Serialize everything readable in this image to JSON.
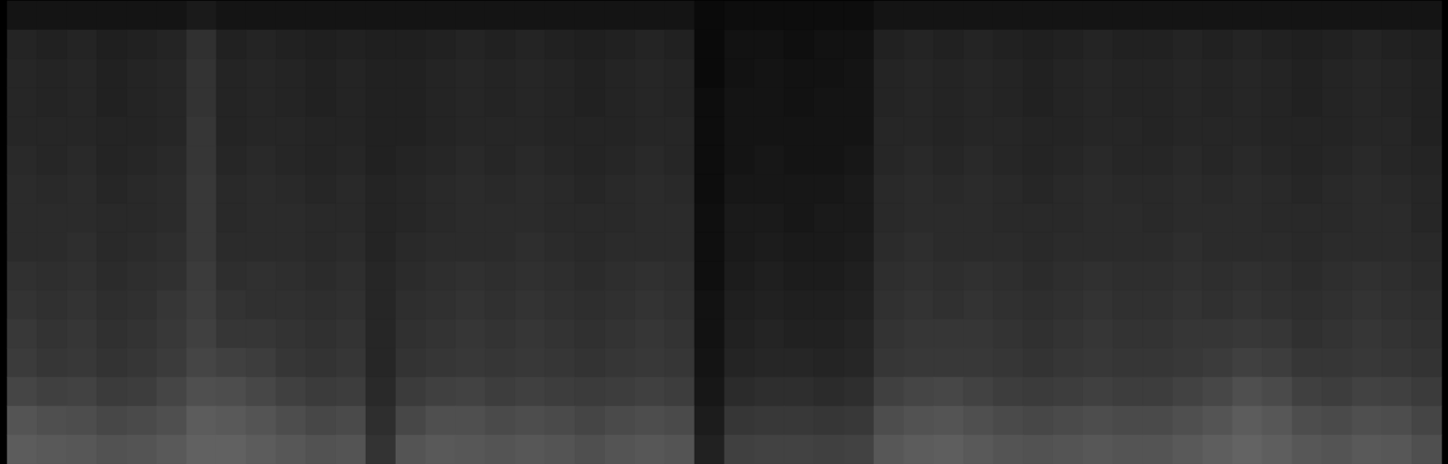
{
  "chart_data": {
    "type": "heatmap",
    "tick_labels": false,
    "zlim": [
      0,
      100
    ],
    "cells": [
      [
        8,
        8,
        8,
        8,
        8,
        8,
        10,
        8,
        8,
        8,
        8,
        8,
        8,
        8,
        8,
        8,
        8,
        8,
        8,
        8,
        8,
        8,
        8,
        4,
        5,
        5,
        5,
        5,
        5,
        8,
        8,
        8,
        8,
        8,
        8,
        8,
        8,
        8,
        8,
        8,
        8,
        8,
        8,
        8,
        8,
        8,
        8,
        8
      ],
      [
        14,
        13,
        14,
        12,
        13,
        14,
        19,
        13,
        14,
        13,
        12,
        13,
        12,
        12,
        13,
        14,
        13,
        14,
        13,
        12,
        13,
        14,
        13,
        4,
        7,
        7,
        6,
        7,
        7,
        13,
        14,
        13,
        14,
        13,
        12,
        13,
        14,
        13,
        13,
        14,
        13,
        14,
        13,
        12,
        13,
        14,
        13,
        12
      ],
      [
        15,
        14,
        15,
        13,
        14,
        15,
        20,
        14,
        15,
        14,
        13,
        14,
        13,
        13,
        14,
        15,
        14,
        15,
        14,
        13,
        14,
        15,
        14,
        4,
        7,
        8,
        7,
        7,
        8,
        14,
        15,
        14,
        15,
        14,
        13,
        14,
        15,
        14,
        14,
        15,
        14,
        15,
        14,
        13,
        14,
        15,
        14,
        13
      ],
      [
        15,
        14,
        15,
        13,
        14,
        15,
        20,
        14,
        15,
        14,
        13,
        14,
        13,
        13,
        14,
        15,
        14,
        15,
        14,
        13,
        14,
        15,
        14,
        5,
        8,
        8,
        7,
        8,
        8,
        14,
        15,
        14,
        15,
        14,
        13,
        14,
        15,
        14,
        14,
        15,
        14,
        15,
        14,
        13,
        14,
        15,
        14,
        13
      ],
      [
        15,
        15,
        15,
        14,
        14,
        15,
        21,
        14,
        15,
        15,
        14,
        14,
        13,
        13,
        14,
        15,
        15,
        15,
        14,
        14,
        14,
        15,
        15,
        5,
        8,
        8,
        8,
        8,
        8,
        15,
        15,
        14,
        15,
        15,
        14,
        14,
        15,
        15,
        14,
        15,
        15,
        15,
        14,
        14,
        14,
        15,
        15,
        13
      ],
      [
        16,
        15,
        16,
        14,
        15,
        16,
        21,
        15,
        16,
        15,
        14,
        15,
        13,
        14,
        15,
        16,
        15,
        16,
        15,
        14,
        15,
        16,
        15,
        5,
        8,
        9,
        8,
        8,
        9,
        15,
        16,
        15,
        16,
        15,
        14,
        15,
        16,
        15,
        15,
        16,
        15,
        16,
        15,
        14,
        15,
        16,
        15,
        14
      ],
      [
        17,
        16,
        17,
        15,
        16,
        17,
        22,
        16,
        17,
        16,
        15,
        16,
        14,
        15,
        16,
        17,
        16,
        17,
        16,
        15,
        16,
        17,
        16,
        5,
        9,
        9,
        9,
        9,
        10,
        16,
        17,
        16,
        17,
        16,
        15,
        16,
        17,
        16,
        16,
        17,
        16,
        17,
        16,
        15,
        16,
        17,
        16,
        15
      ],
      [
        17,
        17,
        17,
        16,
        16,
        17,
        22,
        16,
        17,
        17,
        16,
        16,
        14,
        15,
        16,
        17,
        17,
        17,
        16,
        16,
        16,
        17,
        17,
        6,
        10,
        10,
        9,
        10,
        10,
        16,
        17,
        17,
        17,
        16,
        16,
        16,
        17,
        17,
        16,
        17,
        17,
        17,
        16,
        16,
        16,
        17,
        17,
        15
      ],
      [
        17,
        17,
        18,
        16,
        17,
        18,
        22,
        17,
        17,
        17,
        16,
        17,
        14,
        16,
        17,
        17,
        17,
        18,
        17,
        16,
        17,
        17,
        17,
        6,
        10,
        11,
        10,
        10,
        11,
        17,
        18,
        17,
        17,
        17,
        16,
        17,
        17,
        17,
        17,
        18,
        17,
        17,
        17,
        16,
        17,
        17,
        17,
        16
      ],
      [
        19,
        18,
        19,
        17,
        18,
        19,
        23,
        18,
        19,
        18,
        17,
        18,
        15,
        17,
        18,
        19,
        18,
        19,
        18,
        17,
        18,
        19,
        18,
        6,
        11,
        12,
        11,
        11,
        12,
        18,
        19,
        18,
        19,
        18,
        17,
        18,
        19,
        18,
        18,
        19,
        18,
        19,
        18,
        17,
        18,
        19,
        18,
        17
      ],
      [
        20,
        19,
        20,
        18,
        19,
        21,
        24,
        20,
        19,
        19,
        18,
        19,
        15,
        18,
        19,
        20,
        19,
        20,
        19,
        18,
        19,
        20,
        19,
        7,
        12,
        13,
        12,
        12,
        13,
        19,
        20,
        19,
        20,
        19,
        18,
        19,
        20,
        19,
        19,
        20,
        19,
        20,
        19,
        18,
        19,
        20,
        19,
        18
      ],
      [
        22,
        20,
        21,
        19,
        20,
        22,
        25,
        21,
        21,
        20,
        19,
        20,
        15,
        19,
        20,
        21,
        20,
        21,
        20,
        19,
        20,
        21,
        20,
        7,
        13,
        14,
        13,
        13,
        14,
        20,
        21,
        21,
        21,
        20,
        19,
        20,
        21,
        20,
        20,
        21,
        21,
        22,
        21,
        19,
        20,
        21,
        20,
        19
      ],
      [
        23,
        21,
        22,
        20,
        21,
        23,
        27,
        25,
        24,
        21,
        20,
        21,
        15,
        20,
        21,
        22,
        21,
        22,
        21,
        20,
        21,
        22,
        21,
        8,
        14,
        15,
        15,
        14,
        15,
        21,
        22,
        22,
        22,
        21,
        20,
        21,
        22,
        21,
        21,
        22,
        23,
        25,
        24,
        21,
        21,
        22,
        21,
        20
      ],
      [
        27,
        25,
        26,
        23,
        24,
        27,
        31,
        30,
        28,
        25,
        23,
        24,
        16,
        23,
        25,
        26,
        24,
        25,
        24,
        23,
        24,
        25,
        24,
        9,
        17,
        18,
        18,
        17,
        18,
        25,
        27,
        28,
        26,
        24,
        23,
        24,
        25,
        24,
        24,
        26,
        28,
        31,
        29,
        25,
        24,
        26,
        25,
        23
      ],
      [
        33,
        31,
        30,
        28,
        29,
        31,
        36,
        35,
        33,
        30,
        28,
        29,
        18,
        28,
        31,
        31,
        29,
        30,
        29,
        27,
        29,
        30,
        29,
        11,
        21,
        22,
        22,
        21,
        22,
        30,
        32,
        33,
        31,
        29,
        28,
        29,
        30,
        29,
        29,
        31,
        33,
        36,
        34,
        30,
        29,
        31,
        30,
        27
      ],
      [
        36,
        35,
        34,
        32,
        33,
        35,
        38,
        38,
        36,
        34,
        32,
        33,
        20,
        33,
        35,
        34,
        33,
        34,
        33,
        31,
        33,
        34,
        33,
        13,
        25,
        26,
        26,
        25,
        26,
        34,
        36,
        37,
        35,
        33,
        32,
        33,
        34,
        33,
        33,
        35,
        37,
        39,
        37,
        34,
        33,
        35,
        34,
        31
      ]
    ]
  }
}
